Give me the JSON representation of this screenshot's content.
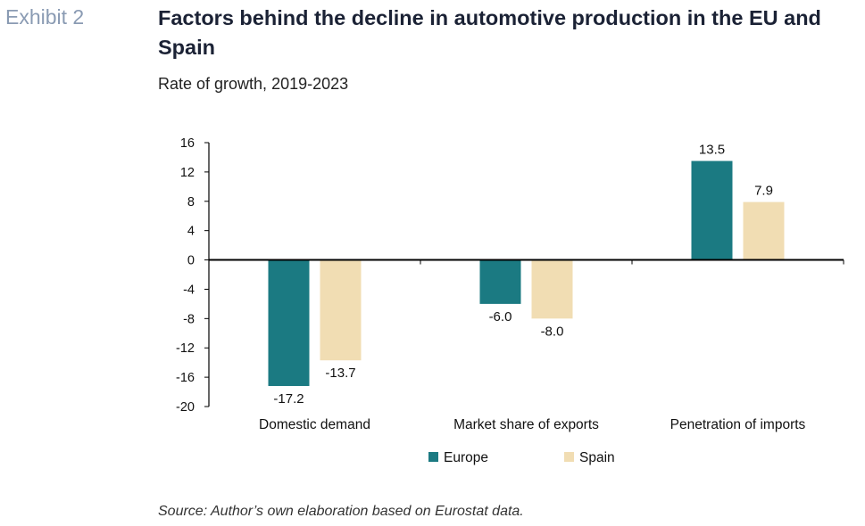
{
  "header": {
    "exhibit": "Exhibit 2",
    "title": "Factors behind the decline in automotive production in the EU and Spain",
    "subtitle": "Rate of growth, 2019-2023"
  },
  "footer": {
    "source": "Source: Author’s own elaboration based on Eurostat data."
  },
  "colors": {
    "europe": "#1b7a82",
    "spain": "#f1ddb3"
  },
  "chart_data": {
    "type": "bar",
    "categories": [
      "Domestic demand",
      "Market share of exports",
      "Penetration of imports"
    ],
    "series": [
      {
        "name": "Europe",
        "values": [
          -17.2,
          -6.0,
          13.5
        ],
        "labels": [
          "-17.2",
          "-6.0",
          "13.5"
        ]
      },
      {
        "name": "Spain",
        "values": [
          -13.7,
          -8.0,
          7.9
        ],
        "labels": [
          "-13.7",
          "-8.0",
          "7.9"
        ]
      }
    ],
    "ylim": [
      -20,
      16
    ],
    "yticks": [
      16,
      12,
      8,
      4,
      0,
      -4,
      -8,
      -12,
      -16,
      -20
    ],
    "legend_position": "bottom",
    "grid": false
  }
}
